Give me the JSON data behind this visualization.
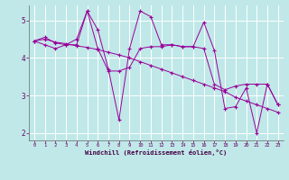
{
  "xlabel": "Windchill (Refroidissement éolien,°C)",
  "bg_color": "#c0e8e8",
  "line_color": "#990099",
  "grid_color": "#ffffff",
  "xlim": [
    -0.5,
    23.5
  ],
  "ylim": [
    1.8,
    5.4
  ],
  "yticks": [
    2,
    3,
    4,
    5
  ],
  "xticks": [
    0,
    1,
    2,
    3,
    4,
    5,
    6,
    7,
    8,
    9,
    10,
    11,
    12,
    13,
    14,
    15,
    16,
    17,
    18,
    19,
    20,
    21,
    22,
    23
  ],
  "lines": [
    [
      4.45,
      4.55,
      4.4,
      4.35,
      4.5,
      5.25,
      4.25,
      3.65,
      3.65,
      3.75,
      4.25,
      4.3,
      4.3,
      4.35,
      4.3,
      4.3,
      4.25,
      3.3,
      3.15,
      3.25,
      3.3,
      3.3,
      3.3,
      2.75
    ],
    [
      4.45,
      4.35,
      4.25,
      4.35,
      4.35,
      5.25,
      4.75,
      3.7,
      2.35,
      4.25,
      5.25,
      5.1,
      4.35,
      4.35,
      4.3,
      4.3,
      4.95,
      4.2,
      2.65,
      2.7,
      3.2,
      2.0,
      3.3,
      2.75
    ],
    [
      4.45,
      4.5,
      4.42,
      4.38,
      4.32,
      4.28,
      4.22,
      4.15,
      4.08,
      4.0,
      3.9,
      3.8,
      3.7,
      3.6,
      3.5,
      3.4,
      3.3,
      3.2,
      3.1,
      2.95,
      2.85,
      2.75,
      2.65,
      2.55
    ]
  ]
}
